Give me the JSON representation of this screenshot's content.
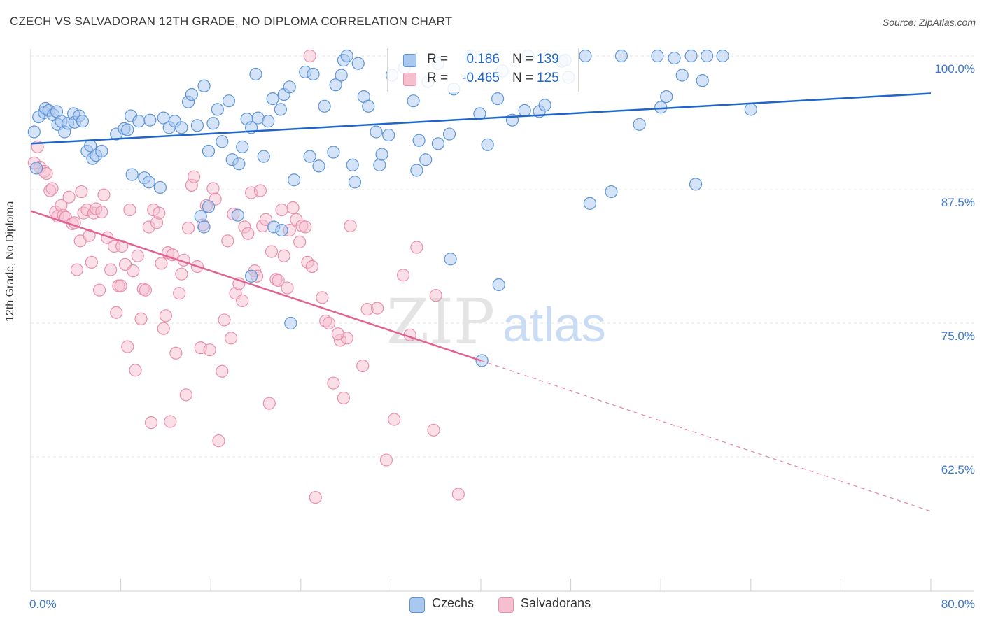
{
  "title": "CZECH VS SALVADORAN 12TH GRADE, NO DIPLOMA CORRELATION CHART",
  "source": "Source: ZipAtlas.com",
  "watermark": {
    "zip": "ZIP",
    "atlas": "atlas"
  },
  "colors": {
    "czech_fill": "#a9c8ef",
    "czech_stroke": "#5d95d8",
    "czech_line": "#1f66c9",
    "salv_fill": "#f6bfd0",
    "salv_stroke": "#e98fae",
    "salv_line": "#e06392",
    "axis_label": "#3b78cf",
    "grid": "#e6e6e6"
  },
  "legend": {
    "czech": {
      "r_label": "R =",
      "r_value": "0.186",
      "n_label": "N =",
      "n_value": "139"
    },
    "salv": {
      "r_label": "R =",
      "r_value": "-0.465",
      "n_label": "N =",
      "n_value": "125"
    }
  },
  "bottom_legend": {
    "czech": "Czechs",
    "salv": "Salvadorans"
  },
  "chart_data": {
    "type": "scatter",
    "title": "CZECH VS SALVADORAN 12TH GRADE, NO DIPLOMA CORRELATION CHART",
    "xlabel": "",
    "ylabel": "12th Grade, No Diploma",
    "xlim": [
      0,
      80
    ],
    "ylim": [
      50,
      101.5
    ],
    "x_tick_labels": [
      "0.0%",
      "80.0%"
    ],
    "y_ticks": [
      62.5,
      75.0,
      87.5,
      100.0
    ],
    "y_tick_labels": [
      "62.5%",
      "75.0%",
      "87.5%",
      "100.0%"
    ],
    "grid": true,
    "legend_placement": "top-center",
    "series": [
      {
        "name": "Czechs",
        "trend": {
          "x": [
            0,
            80
          ],
          "y": [
            91.8,
            96.5
          ]
        },
        "points": [
          [
            0.3,
            92.9
          ],
          [
            0.5,
            89.5
          ],
          [
            0.7,
            94.3
          ],
          [
            1.2,
            94.7
          ],
          [
            1.3,
            95.1
          ],
          [
            1.6,
            94.9
          ],
          [
            2.0,
            94.5
          ],
          [
            2.3,
            94.8
          ],
          [
            2.4,
            93.6
          ],
          [
            2.7,
            93.9
          ],
          [
            3.0,
            92.9
          ],
          [
            3.3,
            93.7
          ],
          [
            3.8,
            94.6
          ],
          [
            3.9,
            93.8
          ],
          [
            4.3,
            94.4
          ],
          [
            4.6,
            93.9
          ],
          [
            5.0,
            91.1
          ],
          [
            5.3,
            91.6
          ],
          [
            5.5,
            90.4
          ],
          [
            5.8,
            90.7
          ],
          [
            6.3,
            91.1
          ],
          [
            7.6,
            92.7
          ],
          [
            8.3,
            93.2
          ],
          [
            8.6,
            93.1
          ],
          [
            8.9,
            94.4
          ],
          [
            9.0,
            88.9
          ],
          [
            9.6,
            93.9
          ],
          [
            10.1,
            88.6
          ],
          [
            10.5,
            88.2
          ],
          [
            10.6,
            94.0
          ],
          [
            11.5,
            87.7
          ],
          [
            11.8,
            94.2
          ],
          [
            12.3,
            93.3
          ],
          [
            12.8,
            93.9
          ],
          [
            13.4,
            93.3
          ],
          [
            14.0,
            95.7
          ],
          [
            14.3,
            96.4
          ],
          [
            14.8,
            93.5
          ],
          [
            15.4,
            97.2
          ],
          [
            15.8,
            91.1
          ],
          [
            16.2,
            93.7
          ],
          [
            16.6,
            95.0
          ],
          [
            17.0,
            92.0
          ],
          [
            17.6,
            95.8
          ],
          [
            17.9,
            90.3
          ],
          [
            18.5,
            89.9
          ],
          [
            18.8,
            91.5
          ],
          [
            19.2,
            94.1
          ],
          [
            19.6,
            93.3
          ],
          [
            20.0,
            98.3
          ],
          [
            20.2,
            94.2
          ],
          [
            20.7,
            90.6
          ],
          [
            21.1,
            93.9
          ],
          [
            21.5,
            96.0
          ],
          [
            22.2,
            95.0
          ],
          [
            22.5,
            96.4
          ],
          [
            23.0,
            97.1
          ],
          [
            23.4,
            88.4
          ],
          [
            24.4,
            98.5
          ],
          [
            24.8,
            90.6
          ],
          [
            25.1,
            98.3
          ],
          [
            25.6,
            89.7
          ],
          [
            26.1,
            95.3
          ],
          [
            26.9,
            91.0
          ],
          [
            27.1,
            97.3
          ],
          [
            27.6,
            98.2
          ],
          [
            27.8,
            99.6
          ],
          [
            28.1,
            100.0
          ],
          [
            28.6,
            89.8
          ],
          [
            28.8,
            88.2
          ],
          [
            29.1,
            99.3
          ],
          [
            29.6,
            96.2
          ],
          [
            30.0,
            95.3
          ],
          [
            30.7,
            92.9
          ],
          [
            31.0,
            89.8
          ],
          [
            31.2,
            90.8
          ],
          [
            31.8,
            92.6
          ],
          [
            32.1,
            98.2
          ],
          [
            33.2,
            98.9
          ],
          [
            34.0,
            95.8
          ],
          [
            34.3,
            89.3
          ],
          [
            34.5,
            92.1
          ],
          [
            35.1,
            90.3
          ],
          [
            35.3,
            97.6
          ],
          [
            36.2,
            99.3
          ],
          [
            36.2,
            91.8
          ],
          [
            37.2,
            92.7
          ],
          [
            37.6,
            96.9
          ],
          [
            39.1,
            100.0
          ],
          [
            39.9,
            94.6
          ],
          [
            40.6,
            91.7
          ],
          [
            41.5,
            96.0
          ],
          [
            41.9,
            98.6
          ],
          [
            42.8,
            94.0
          ],
          [
            43.9,
            94.9
          ],
          [
            44.2,
            100.0
          ],
          [
            45.2,
            94.8
          ],
          [
            45.7,
            95.4
          ],
          [
            47.2,
            99.5
          ],
          [
            47.5,
            99.6
          ],
          [
            47.8,
            98.0
          ],
          [
            49.3,
            100.0
          ],
          [
            49.7,
            86.2
          ],
          [
            51.6,
            87.3
          ],
          [
            52.5,
            100.0
          ],
          [
            54.1,
            93.6
          ],
          [
            55.7,
            100.0
          ],
          [
            56.0,
            95.2
          ],
          [
            56.5,
            96.2
          ],
          [
            57.2,
            99.8
          ],
          [
            57.9,
            98.2
          ],
          [
            58.7,
            100.0
          ],
          [
            59.1,
            88.0
          ],
          [
            60.1,
            100.0
          ],
          [
            61.5,
            100.0
          ],
          [
            59.7,
            97.7
          ],
          [
            64.0,
            95.0
          ],
          [
            15.1,
            85.0
          ],
          [
            15.4,
            84.0
          ],
          [
            15.8,
            85.9
          ],
          [
            18.4,
            85.1
          ],
          [
            19.6,
            79.4
          ],
          [
            21.6,
            84.0
          ],
          [
            22.3,
            83.7
          ],
          [
            23.1,
            75.0
          ],
          [
            37.3,
            81.0
          ],
          [
            40.1,
            71.5
          ],
          [
            41.6,
            78.6
          ]
        ]
      },
      {
        "name": "Salvadorans",
        "trend": {
          "x": [
            0,
            40
          ],
          "y": [
            85.5,
            71.5
          ]
        },
        "trend_dashed": {
          "x": [
            40,
            80
          ],
          "y": [
            71.5,
            57.4
          ]
        },
        "points": [
          [
            0.3,
            90.0
          ],
          [
            0.6,
            91.5
          ],
          [
            0.8,
            89.6
          ],
          [
            1.2,
            89.2
          ],
          [
            1.4,
            89.0
          ],
          [
            1.7,
            87.4
          ],
          [
            1.9,
            87.6
          ],
          [
            2.2,
            85.4
          ],
          [
            2.4,
            85.0
          ],
          [
            2.7,
            86.0
          ],
          [
            2.9,
            85.1
          ],
          [
            3.1,
            84.9
          ],
          [
            3.4,
            86.8
          ],
          [
            3.7,
            84.3
          ],
          [
            3.9,
            84.4
          ],
          [
            4.1,
            80.0
          ],
          [
            4.4,
            82.7
          ],
          [
            4.5,
            87.3
          ],
          [
            4.7,
            85.3
          ],
          [
            5.0,
            85.6
          ],
          [
            5.2,
            83.2
          ],
          [
            5.4,
            80.7
          ],
          [
            5.6,
            85.3
          ],
          [
            5.8,
            85.7
          ],
          [
            6.1,
            78.1
          ],
          [
            6.3,
            85.4
          ],
          [
            6.5,
            87.0
          ],
          [
            6.8,
            83.0
          ],
          [
            7.1,
            80.0
          ],
          [
            7.4,
            82.2
          ],
          [
            7.6,
            76.0
          ],
          [
            7.8,
            78.5
          ],
          [
            8.0,
            78.5
          ],
          [
            8.1,
            82.2
          ],
          [
            8.4,
            80.5
          ],
          [
            8.6,
            72.8
          ],
          [
            8.8,
            85.6
          ],
          [
            9.1,
            79.9
          ],
          [
            9.3,
            70.6
          ],
          [
            9.5,
            81.3
          ],
          [
            9.8,
            75.4
          ],
          [
            10.0,
            78.2
          ],
          [
            10.2,
            78.1
          ],
          [
            10.5,
            84.0
          ],
          [
            10.7,
            65.7
          ],
          [
            10.9,
            85.6
          ],
          [
            11.2,
            84.4
          ],
          [
            11.4,
            85.3
          ],
          [
            11.6,
            80.6
          ],
          [
            11.8,
            74.5
          ],
          [
            12.0,
            75.7
          ],
          [
            12.2,
            81.6
          ],
          [
            12.4,
            65.8
          ],
          [
            12.6,
            81.4
          ],
          [
            12.9,
            72.2
          ],
          [
            13.2,
            77.8
          ],
          [
            13.4,
            79.6
          ],
          [
            13.6,
            80.9
          ],
          [
            13.8,
            68.3
          ],
          [
            14.0,
            83.9
          ],
          [
            14.3,
            87.9
          ],
          [
            14.5,
            88.7
          ],
          [
            14.8,
            80.3
          ],
          [
            15.1,
            72.7
          ],
          [
            15.3,
            84.2
          ],
          [
            15.6,
            86.0
          ],
          [
            15.9,
            72.5
          ],
          [
            16.2,
            87.6
          ],
          [
            16.4,
            86.6
          ],
          [
            16.7,
            64.0
          ],
          [
            17.0,
            70.5
          ],
          [
            17.2,
            75.3
          ],
          [
            17.5,
            82.7
          ],
          [
            17.8,
            73.6
          ],
          [
            18.0,
            85.2
          ],
          [
            18.2,
            77.8
          ],
          [
            18.5,
            78.7
          ],
          [
            18.8,
            77.1
          ],
          [
            19.0,
            84.0
          ],
          [
            19.3,
            83.4
          ],
          [
            19.6,
            87.2
          ],
          [
            19.9,
            79.9
          ],
          [
            20.1,
            79.4
          ],
          [
            20.4,
            87.4
          ],
          [
            20.6,
            84.1
          ],
          [
            20.9,
            84.7
          ],
          [
            21.2,
            67.5
          ],
          [
            21.4,
            81.7
          ],
          [
            21.8,
            79.1
          ],
          [
            22.0,
            79.0
          ],
          [
            22.3,
            85.6
          ],
          [
            22.5,
            81.3
          ],
          [
            22.8,
            78.3
          ],
          [
            23.0,
            83.7
          ],
          [
            23.3,
            85.8
          ],
          [
            23.6,
            84.7
          ],
          [
            23.9,
            82.6
          ],
          [
            24.1,
            84.1
          ],
          [
            24.4,
            84.0
          ],
          [
            24.6,
            80.7
          ],
          [
            25.0,
            80.3
          ],
          [
            25.3,
            58.7
          ],
          [
            25.9,
            77.4
          ],
          [
            26.2,
            75.2
          ],
          [
            26.5,
            75.0
          ],
          [
            26.9,
            69.4
          ],
          [
            27.5,
            73.4
          ],
          [
            27.8,
            68.0
          ],
          [
            28.1,
            73.6
          ],
          [
            28.4,
            84.1
          ],
          [
            29.9,
            76.3
          ],
          [
            30.8,
            76.4
          ],
          [
            31.6,
            62.2
          ],
          [
            32.3,
            66.0
          ],
          [
            33.1,
            79.5
          ],
          [
            33.7,
            73.9
          ],
          [
            34.3,
            82.1
          ],
          [
            35.8,
            65.0
          ],
          [
            36.0,
            77.6
          ],
          [
            38.0,
            59.0
          ],
          [
            24.8,
            100.0
          ],
          [
            27.3,
            74.0
          ],
          [
            29.5,
            71.0
          ]
        ]
      }
    ]
  }
}
